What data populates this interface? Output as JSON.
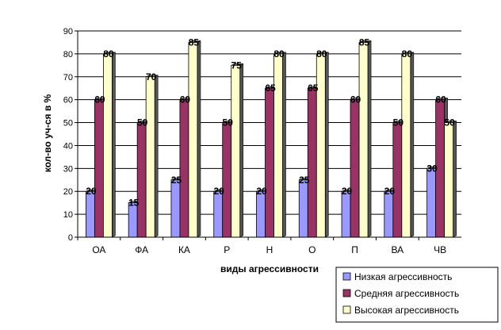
{
  "chart_data": {
    "type": "bar",
    "title": "",
    "xlabel": "виды агрессивности",
    "ylabel": "кол-во уч-ся в %",
    "ylim": [
      0,
      90
    ],
    "yticks": [
      0,
      10,
      20,
      30,
      40,
      50,
      60,
      70,
      80,
      90
    ],
    "grid": true,
    "legend_position": "bottom-right",
    "categories": [
      "ОА",
      "ФА",
      "КА",
      "Р",
      "Н",
      "О",
      "П",
      "ВА",
      "ЧВ"
    ],
    "series": [
      {
        "name": "Низкая агрессивность",
        "color": "#9999ff",
        "values": [
          20,
          15,
          25,
          20,
          20,
          25,
          20,
          20,
          30
        ]
      },
      {
        "name": "Средняя агрессивность",
        "color": "#993366",
        "values": [
          60,
          50,
          60,
          50,
          65,
          65,
          60,
          50,
          60
        ]
      },
      {
        "name": "Высокая агрессивность",
        "color": "#ffffcc",
        "values": [
          80,
          70,
          85,
          75,
          80,
          80,
          85,
          80,
          50
        ]
      }
    ]
  }
}
